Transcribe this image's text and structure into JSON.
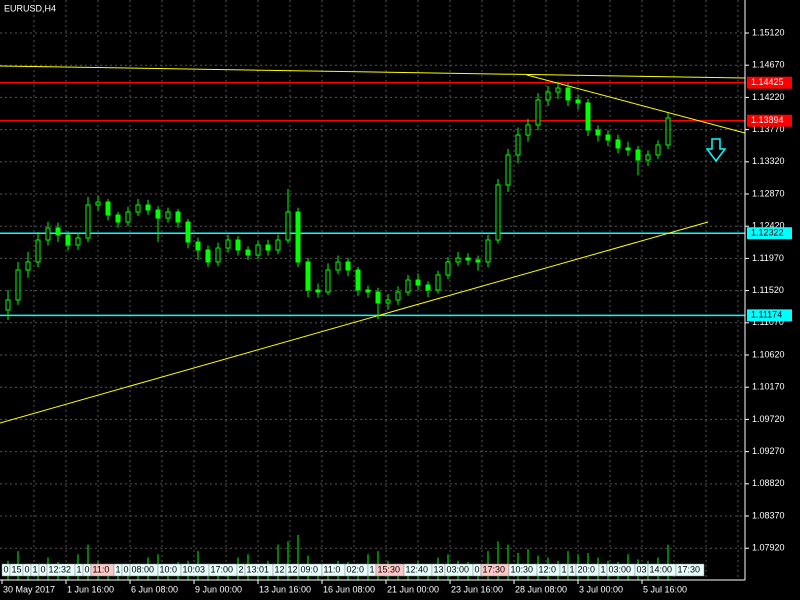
{
  "chart_data": {
    "type": "candlestick",
    "title": "EURUSD,H4",
    "color": "#00ff00",
    "grid": true,
    "ylim": [
      1.07476,
      1.15581
    ],
    "yticks": [
      {
        "value": 1.1512,
        "label": "1.15120"
      },
      {
        "value": 1.1467,
        "label": "1.14670"
      },
      {
        "value": 1.1422,
        "label": "1.14220"
      },
      {
        "value": 1.1377,
        "label": "1.13770"
      },
      {
        "value": 1.1332,
        "label": "1.13320"
      },
      {
        "value": 1.1287,
        "label": "1.12870"
      },
      {
        "value": 1.1242,
        "label": "1.12420"
      },
      {
        "value": 1.1197,
        "label": "1.11970"
      },
      {
        "value": 1.1152,
        "label": "1.11520"
      },
      {
        "value": 1.1107,
        "label": "1.11070"
      },
      {
        "value": 1.1062,
        "label": "1.10620"
      },
      {
        "value": 1.1017,
        "label": "1.10170"
      },
      {
        "value": 1.0972,
        "label": "1.09720"
      },
      {
        "value": 1.0927,
        "label": "1.09270"
      },
      {
        "value": 1.0882,
        "label": "1.08820"
      },
      {
        "value": 1.0837,
        "label": "1.08370"
      },
      {
        "value": 1.0792,
        "label": "1.07920"
      }
    ],
    "x_labels": [
      "30 May 2017",
      "1 Jun 16:00",
      "6 Jun 08:00",
      "9 Jun 00:00",
      "13 Jun 16:00",
      "16 Jun 08:00",
      "21 Jun 00:00",
      "23 Jun 16:00",
      "28 Jun 08:00",
      "3 Jul 00:00",
      "5 Jul 16:00"
    ],
    "open": [
      1.1125,
      1.11389,
      1.11808,
      1.1192,
      1.12227,
      1.12395,
      1.12297,
      1.12157,
      1.12255,
      1.12716,
      1.12758,
      1.12576,
      1.12479,
      1.12618,
      1.12716,
      1.12646,
      1.12534,
      1.12618,
      1.12479,
      1.12199,
      1.12087,
      1.1192,
      1.12115,
      1.12227,
      1.12087,
      1.12017,
      1.12157,
      1.12087,
      1.12227,
      1.12618,
      1.1192,
      1.11528,
      1.115,
      1.11808,
      1.1192,
      1.11808,
      1.11528,
      1.115,
      1.11347,
      1.11389,
      1.115,
      1.11668,
      1.11598,
      1.11528,
      1.11738,
      1.1192,
      1.11975,
      1.11948,
      1.1192,
      1.12227,
      1.12996,
      1.13415,
      1.13694,
      1.13834,
      1.14184,
      1.14295,
      1.14351,
      1.14184,
      1.14142,
      1.13764,
      1.13694,
      1.13625,
      1.13513,
      1.13485,
      1.13345,
      1.13415,
      1.13555
    ],
    "high": [
      1.11528,
      1.1192,
      1.1206,
      1.1234,
      1.1248,
      1.1247,
      1.1235,
      1.1233,
      1.1283,
      1.1285,
      1.128,
      1.1262,
      1.1269,
      1.128,
      1.1279,
      1.127,
      1.1268,
      1.1266,
      1.1252,
      1.1226,
      1.1215,
      1.1219,
      1.123,
      1.1228,
      1.1214,
      1.1222,
      1.1223,
      1.123,
      1.1294,
      1.1268,
      1.1198,
      1.1162,
      1.119,
      1.1201,
      1.1198,
      1.1185,
      1.1159,
      1.1156,
      1.1147,
      1.1158,
      1.1174,
      1.1176,
      1.1165,
      1.118,
      1.1199,
      1.1206,
      1.1204,
      1.1201,
      1.123,
      1.1308,
      1.135,
      1.138,
      1.1392,
      1.1428,
      1.1438,
      1.1444,
      1.1442,
      1.1426,
      1.142,
      1.1383,
      1.1376,
      1.137,
      1.136,
      1.1354,
      1.1348,
      1.1362,
      1.14
    ],
    "low": [
      1.1111,
      1.1132,
      1.117,
      1.1185,
      1.1215,
      1.122,
      1.1208,
      1.1209,
      1.122,
      1.1264,
      1.125,
      1.124,
      1.1242,
      1.1256,
      1.1258,
      1.122,
      1.1247,
      1.124,
      1.1211,
      1.1195,
      1.1185,
      1.1186,
      1.1205,
      1.1201,
      1.1195,
      1.1196,
      1.1201,
      1.1203,
      1.1218,
      1.1185,
      1.1143,
      1.1142,
      1.1146,
      1.1175,
      1.1172,
      1.1145,
      1.1142,
      1.1112,
      1.1125,
      1.1132,
      1.1145,
      1.1153,
      1.1143,
      1.1148,
      1.1168,
      1.1186,
      1.1188,
      1.118,
      1.1185,
      1.1218,
      1.129,
      1.133,
      1.136,
      1.1376,
      1.141,
      1.142,
      1.141,
      1.1405,
      1.1368,
      1.136,
      1.1354,
      1.1344,
      1.134,
      1.1313,
      1.1326,
      1.1336,
      1.135
    ],
    "close": [
      1.11389,
      1.11808,
      1.1192,
      1.12227,
      1.12395,
      1.12297,
      1.12157,
      1.12255,
      1.12716,
      1.12758,
      1.12576,
      1.12479,
      1.12618,
      1.12716,
      1.12646,
      1.12534,
      1.12618,
      1.12479,
      1.12199,
      1.12087,
      1.1192,
      1.12115,
      1.12227,
      1.12087,
      1.12017,
      1.12157,
      1.12087,
      1.12227,
      1.12618,
      1.1192,
      1.11528,
      1.115,
      1.11808,
      1.1192,
      1.11808,
      1.11528,
      1.115,
      1.11347,
      1.11389,
      1.115,
      1.11668,
      1.11598,
      1.11528,
      1.11738,
      1.1192,
      1.11975,
      1.11948,
      1.1192,
      1.12227,
      1.12996,
      1.13415,
      1.13694,
      1.13834,
      1.14184,
      1.14295,
      1.14351,
      1.14184,
      1.14142,
      1.13764,
      1.13694,
      1.13625,
      1.13513,
      1.13485,
      1.13345,
      1.13415,
      1.13555,
      1.13932
    ],
    "volume": [
      30,
      45,
      25,
      20,
      35,
      28,
      15,
      40,
      55,
      30,
      20,
      25,
      18,
      22,
      35,
      40,
      20,
      28,
      30,
      45,
      25,
      22,
      20,
      35,
      40,
      25,
      30,
      55,
      60,
      70,
      38,
      25,
      20,
      30,
      28,
      25,
      40,
      45,
      30,
      20,
      25,
      30,
      22,
      35,
      40,
      30,
      28,
      25,
      45,
      60,
      55,
      42,
      48,
      38,
      35,
      30,
      45,
      40,
      42,
      35,
      30,
      28,
      40,
      32,
      30,
      35,
      55
    ],
    "levels": [
      {
        "value": 1.14425,
        "color": "#ff0000"
      },
      {
        "value": 1.13894,
        "color": "#ff0000"
      },
      {
        "value": 1.12322,
        "color": "#00ffff"
      },
      {
        "value": 1.11174,
        "color": "#00ffff"
      }
    ],
    "trendlines": [
      {
        "x": [
          -0.8,
          73.7
        ],
        "y": [
          1.14659,
          1.14491
        ],
        "color": "#ffff00"
      },
      {
        "x": [
          51.9,
          73.7
        ],
        "y": [
          1.14533,
          1.13722
        ],
        "color": "#ffff00"
      },
      {
        "x": [
          -0.8,
          70
        ],
        "y": [
          1.0967,
          1.12479
        ],
        "color": "#ffff00"
      }
    ],
    "events": [
      {
        "text": "0",
        "color": "#e8ffff"
      },
      {
        "text": "15",
        "color": "#e8ffff"
      },
      {
        "text": "0",
        "color": "#e8ffff"
      },
      {
        "text": "1",
        "color": "#e8ffff"
      },
      {
        "text": "0",
        "color": "#e8ffff"
      },
      {
        "text": "12:32",
        "color": "#e8ffff"
      },
      {
        "text": "1",
        "color": "#e8ffff"
      },
      {
        "text": "0",
        "color": "#e8ffff"
      },
      {
        "text": "11:0",
        "color": "#ffc8c8"
      },
      {
        "text": "1",
        "color": "#e8ffff"
      },
      {
        "text": "0",
        "color": "#e8ffff"
      },
      {
        "text": "08:00",
        "color": "#e8ffff"
      },
      {
        "text": "10:0",
        "color": "#e8ffff"
      },
      {
        "text": "10:03",
        "color": "#e8ffff"
      },
      {
        "text": "17:00",
        "color": "#e8ffff"
      },
      {
        "text": "2",
        "color": "#e8ffff"
      },
      {
        "text": "13:01",
        "color": "#e8ffff"
      },
      {
        "text": "12",
        "color": "#e8ffff"
      },
      {
        "text": "12",
        "color": "#e8ffff"
      },
      {
        "text": "09:0",
        "color": "#e8ffff"
      },
      {
        "text": "11:0",
        "color": "#e8ffff"
      },
      {
        "text": "02:0",
        "color": "#e8ffff"
      },
      {
        "text": "1",
        "color": "#e8ffff"
      },
      {
        "text": "15:30",
        "color": "#ffc8c8"
      },
      {
        "text": "12:40",
        "color": "#e8ffff"
      },
      {
        "text": "13",
        "color": "#e8ffff"
      },
      {
        "text": "03:00",
        "color": "#e8ffff"
      },
      {
        "text": "0",
        "color": "#e8ffff"
      },
      {
        "text": "17:30",
        "color": "#ffc8c8"
      },
      {
        "text": "10:30",
        "color": "#e8ffff"
      },
      {
        "text": "12:0",
        "color": "#e8ffff"
      },
      {
        "text": "1",
        "color": "#e8ffff"
      },
      {
        "text": "1",
        "color": "#e8ffff"
      },
      {
        "text": "20:0",
        "color": "#e8ffff"
      },
      {
        "text": "1",
        "color": "#e8ffff"
      },
      {
        "text": "03:00",
        "color": "#e8ffff"
      },
      {
        "text": "03",
        "color": "#e8ffff"
      },
      {
        "text": "14:00",
        "color": "#e8ffff"
      },
      {
        "text": "17:30",
        "color": "#e8ffff"
      }
    ]
  }
}
